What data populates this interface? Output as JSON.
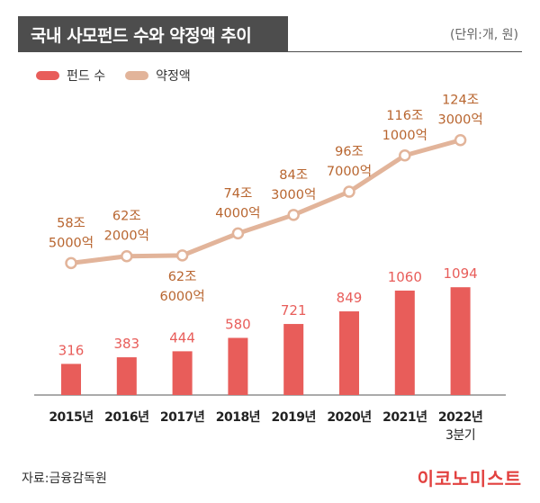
{
  "header": {
    "title": "국내 사모펀드 수와 약정액 추이",
    "unit_note": "(단위:개, 원)"
  },
  "legend": [
    {
      "label": "펀드 수",
      "color": "#e85d5a"
    },
    {
      "label": "약정액",
      "color": "#e2b49a"
    }
  ],
  "chart_data": {
    "type": "bar+line",
    "categories": [
      "2015년",
      "2016년",
      "2017년",
      "2018년",
      "2019년",
      "2020년",
      "2021년",
      "2022년 3분기"
    ],
    "series": [
      {
        "name": "펀드 수",
        "type": "bar",
        "values": [
          316,
          383,
          444,
          580,
          721,
          849,
          1060,
          1094
        ],
        "labels": [
          "316",
          "383",
          "444",
          "580",
          "721",
          "849",
          "1060",
          "1094"
        ],
        "color": "#e85d5a",
        "label_color": "#e85d5a"
      },
      {
        "name": "약정액",
        "type": "line",
        "values": [
          58.5,
          62.2,
          62.6,
          74.4,
          84.3,
          96.7,
          116.1,
          124.3
        ],
        "unit": "조 원",
        "labels": [
          [
            "58조",
            "5000억"
          ],
          [
            "62조",
            "2000억"
          ],
          [
            "62조",
            "6000억"
          ],
          [
            "74조",
            "4000억"
          ],
          [
            "84조",
            "3000억"
          ],
          [
            "96조",
            "7000억"
          ],
          [
            "116조",
            "1000억"
          ],
          [
            "124조",
            "3000억"
          ]
        ],
        "label_position": [
          "above",
          "above",
          "below",
          "above",
          "above",
          "above",
          "above",
          "above"
        ],
        "color": "#e2b49a",
        "label_color": "#b8652f"
      }
    ],
    "grid": false
  },
  "footer": {
    "source": "자료:금융감독원",
    "brand": "이코노미스트"
  }
}
